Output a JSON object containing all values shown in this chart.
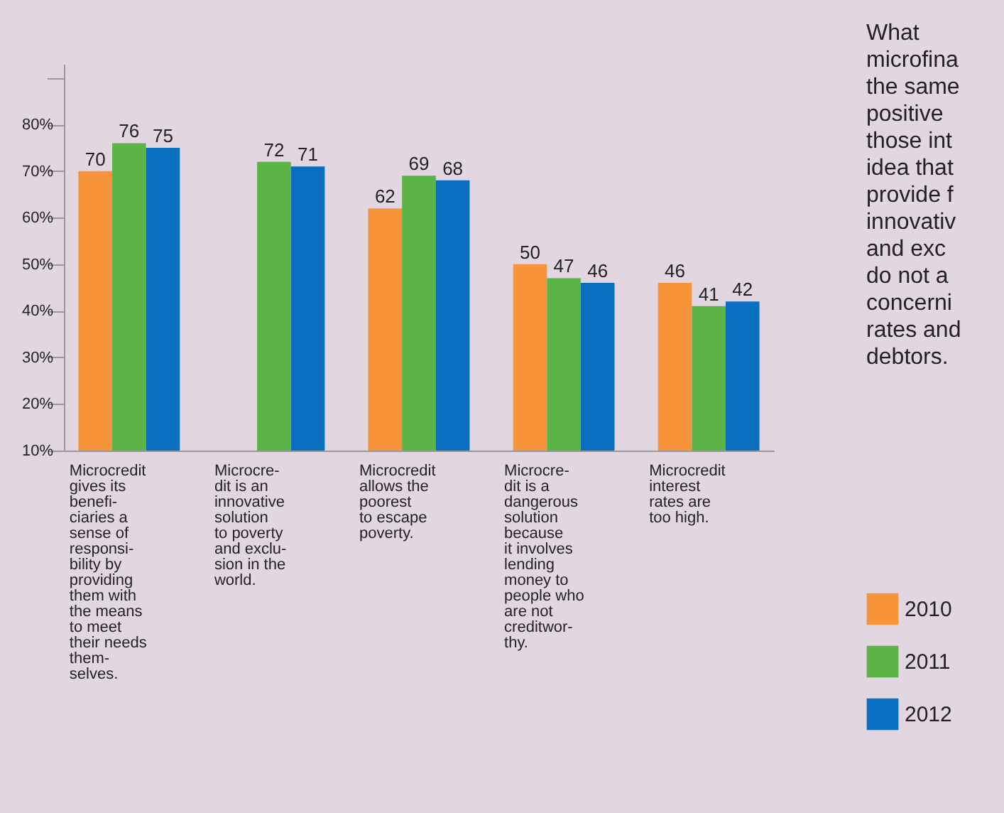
{
  "chart_data": {
    "type": "bar",
    "categories": [
      "Microcredit\ngives its\nbenefi-\nciaries a\nsense of\nresponsi-\nbility by\nproviding\nthem with\nthe means\nto meet\ntheir needs\nthem-\nselves.",
      "Microcre-\ndit is an\ninnovative\nsolution\nto poverty\nand exclu-\nsion in the\nworld.",
      "Microcredit\nallows the\npoorest\nto escape\npoverty.",
      "Microcre-\ndit is a\ndangerous\nsolution\nbecause\nit involves\nlending\nmoney to\npeople who\nare not\ncreditwor-\nthy.",
      "Microcredit\ninterest\nrates are\ntoo high."
    ],
    "series": [
      {
        "name": "2010",
        "color": "#f7943a",
        "values": [
          70,
          null,
          62,
          50,
          46
        ]
      },
      {
        "name": "2011",
        "color": "#5cb346",
        "values": [
          76,
          72,
          69,
          47,
          41
        ]
      },
      {
        "name": "2012",
        "color": "#0a6fc0",
        "values": [
          75,
          71,
          68,
          46,
          42
        ]
      }
    ],
    "ylim": [
      10,
      93
    ],
    "yticks": [
      {
        "value": 10,
        "label": "10%"
      },
      {
        "value": 20,
        "label": "20%"
      },
      {
        "value": 30,
        "label": "30%"
      },
      {
        "value": 40,
        "label": "40%"
      },
      {
        "value": 50,
        "label": "50%"
      },
      {
        "value": 60,
        "label": "60%"
      },
      {
        "value": 70,
        "label": "70%"
      },
      {
        "value": 80,
        "label": "80%"
      },
      {
        "value": 90,
        "label": null
      }
    ],
    "data_labels": true,
    "grid": false,
    "legend": "bottom right",
    "annotations": [
      "What\nmicrofina\nthe same\npositive\nthose int\nidea that\nprovide f\ninnovativ\nand exc\ndo not a\nconcerni\nrates and\ndebtors."
    ]
  }
}
